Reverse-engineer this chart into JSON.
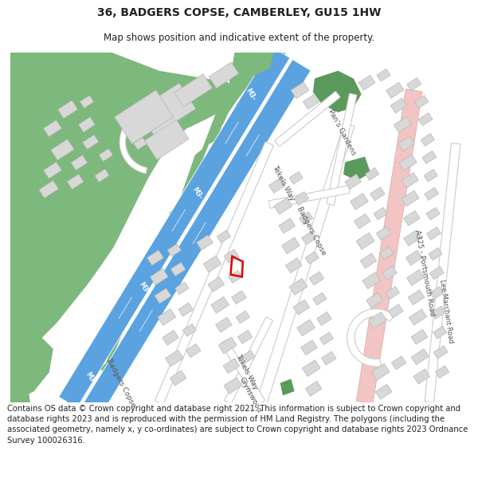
{
  "title": "36, BADGERS COPSE, CAMBERLEY, GU15 1HW",
  "subtitle": "Map shows position and indicative extent of the property.",
  "footer": "Contains OS data © Crown copyright and database right 2021. This information is subject to Crown copyright and database rights 2023 and is reproduced with the permission of HM Land Registry. The polygons (including the associated geometry, namely x, y co-ordinates) are subject to Crown copyright and database rights 2023 Ordnance Survey 100026316.",
  "title_fontsize": 10,
  "subtitle_fontsize": 8.5,
  "footer_fontsize": 7.2,
  "map_bg": "#ffffff",
  "green_light": "#7db87d",
  "green_dark": "#5a9a5a",
  "motorway_blue": "#5ba3e0",
  "motorway_border": "#3a7fbf",
  "road_pink": "#f2c4c4",
  "road_pink_edge": "#dba8a8",
  "building_fill": "#d8d8d8",
  "building_edge": "#b8b8b8",
  "property_red": "#e00000",
  "text_dark": "#222222",
  "road_label_color": "#555555"
}
